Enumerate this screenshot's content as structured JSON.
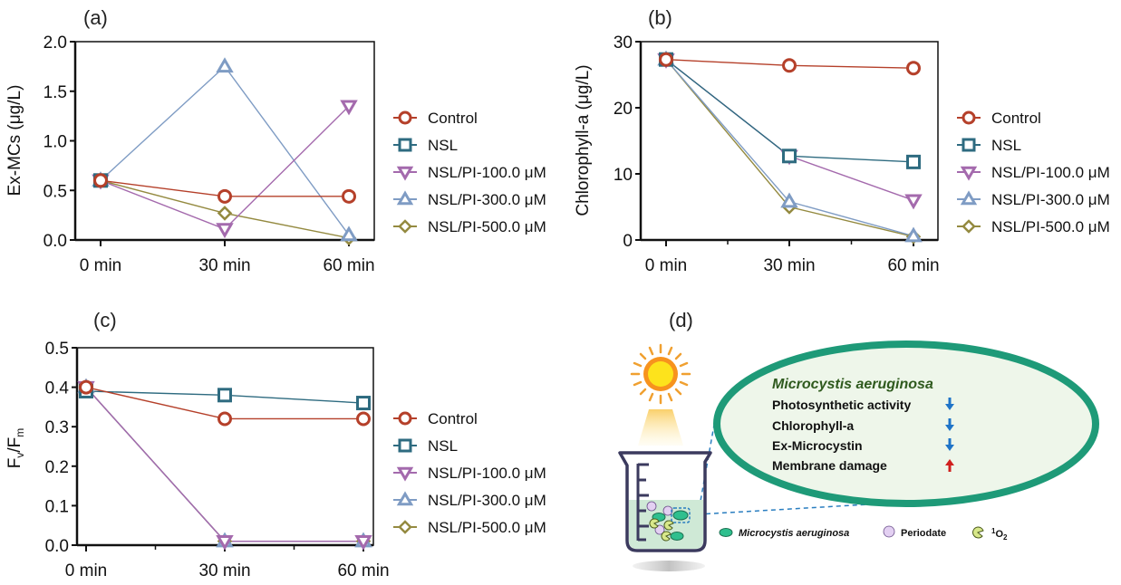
{
  "colors": {
    "Control": "#b5402a",
    "NSL": "#2e6b80",
    "NSL/PI-100.0 μM": "#a46aad",
    "NSL/PI-300.0 μM": "#7f9cc4",
    "NSL/PI-500.0 μM": "#948a40"
  },
  "chart_data": [
    {
      "type": "line",
      "panel": "(a)",
      "title": "",
      "xlabel": "",
      "ylabel": "Ex-MCs (μg/L)",
      "categories": [
        "0 min",
        "30 min",
        "60 min"
      ],
      "ylim": [
        0,
        2.0
      ],
      "yticks": [
        "0.0",
        "0.5",
        "1.0",
        "1.5",
        "2.0"
      ],
      "legend_position": "right",
      "series": [
        {
          "name": "Control",
          "marker": "circle",
          "values": [
            0.6,
            0.44,
            0.44
          ]
        },
        {
          "name": "NSL",
          "marker": "square",
          "values": [
            0.6,
            null,
            null
          ]
        },
        {
          "name": "NSL/PI-100.0 μM",
          "marker": "triangle-down",
          "values": [
            0.6,
            0.11,
            1.35
          ]
        },
        {
          "name": "NSL/PI-300.0 μM",
          "marker": "triangle-up",
          "values": [
            0.6,
            1.75,
            0.05
          ]
        },
        {
          "name": "NSL/PI-500.0 μM",
          "marker": "diamond",
          "values": [
            0.6,
            0.27,
            0.02
          ]
        }
      ]
    },
    {
      "type": "line",
      "panel": "(b)",
      "title": "",
      "xlabel": "",
      "ylabel": "Chlorophyll-a (μg/L)",
      "categories": [
        "0 min",
        "30 min",
        "60 min"
      ],
      "ylim": [
        0,
        30
      ],
      "yticks": [
        "0",
        "10",
        "20",
        "30"
      ],
      "legend_position": "right",
      "series": [
        {
          "name": "Control",
          "marker": "circle",
          "values": [
            27.3,
            26.4,
            26.0
          ]
        },
        {
          "name": "NSL",
          "marker": "square",
          "values": [
            27.3,
            12.7,
            11.8
          ]
        },
        {
          "name": "NSL/PI-100.0 μM",
          "marker": "triangle-down",
          "values": [
            27.3,
            12.7,
            6.0
          ]
        },
        {
          "name": "NSL/PI-300.0 μM",
          "marker": "triangle-up",
          "values": [
            27.3,
            5.8,
            0.6
          ]
        },
        {
          "name": "NSL/PI-500.0 μM",
          "marker": "diamond",
          "values": [
            27.3,
            5.0,
            0.5
          ]
        }
      ]
    },
    {
      "type": "line",
      "panel": "(c)",
      "title": "",
      "xlabel": "",
      "ylabel": "Fv/Fm",
      "categories": [
        "0 min",
        "30 min",
        "60 min"
      ],
      "ylim": [
        0,
        0.5
      ],
      "yticks": [
        "0.0",
        "0.1",
        "0.2",
        "0.3",
        "0.4",
        "0.5"
      ],
      "legend_position": "right",
      "series": [
        {
          "name": "Control",
          "marker": "circle",
          "values": [
            0.4,
            0.32,
            0.32
          ]
        },
        {
          "name": "NSL",
          "marker": "square",
          "values": [
            0.39,
            0.38,
            0.36
          ]
        },
        {
          "name": "NSL/PI-100.0 μM",
          "marker": "triangle-down",
          "values": [
            0.4,
            0.01,
            0.01
          ]
        },
        {
          "name": "NSL/PI-300.0 μM",
          "marker": "triangle-up",
          "values": [
            0.4,
            0.01,
            0.01
          ]
        },
        {
          "name": "NSL/PI-500.0 μM",
          "marker": "diamond",
          "values": [
            0.4,
            0.01,
            0.01
          ]
        }
      ]
    }
  ],
  "diagram": {
    "panel": "(d)",
    "title": "Microcystis aeruginosa",
    "items": [
      {
        "label": "Photosynthetic activity",
        "trend": "down"
      },
      {
        "label": "Chlorophyll-a",
        "trend": "down"
      },
      {
        "label": "Ex-Microcystin",
        "trend": "down"
      },
      {
        "label": "Membrane damage",
        "trend": "up"
      }
    ],
    "legend": {
      "cell": "Microcystis aeruginosa",
      "periodate": "Periodate",
      "singlet_oxygen_sup": "1",
      "singlet_oxygen": "O",
      "singlet_oxygen_sub": "2"
    },
    "colors": {
      "ring": "#1e9a78",
      "down_arrow": "#1f74c8",
      "up_arrow": "#d0201e",
      "sun": "#f9c80e"
    }
  }
}
